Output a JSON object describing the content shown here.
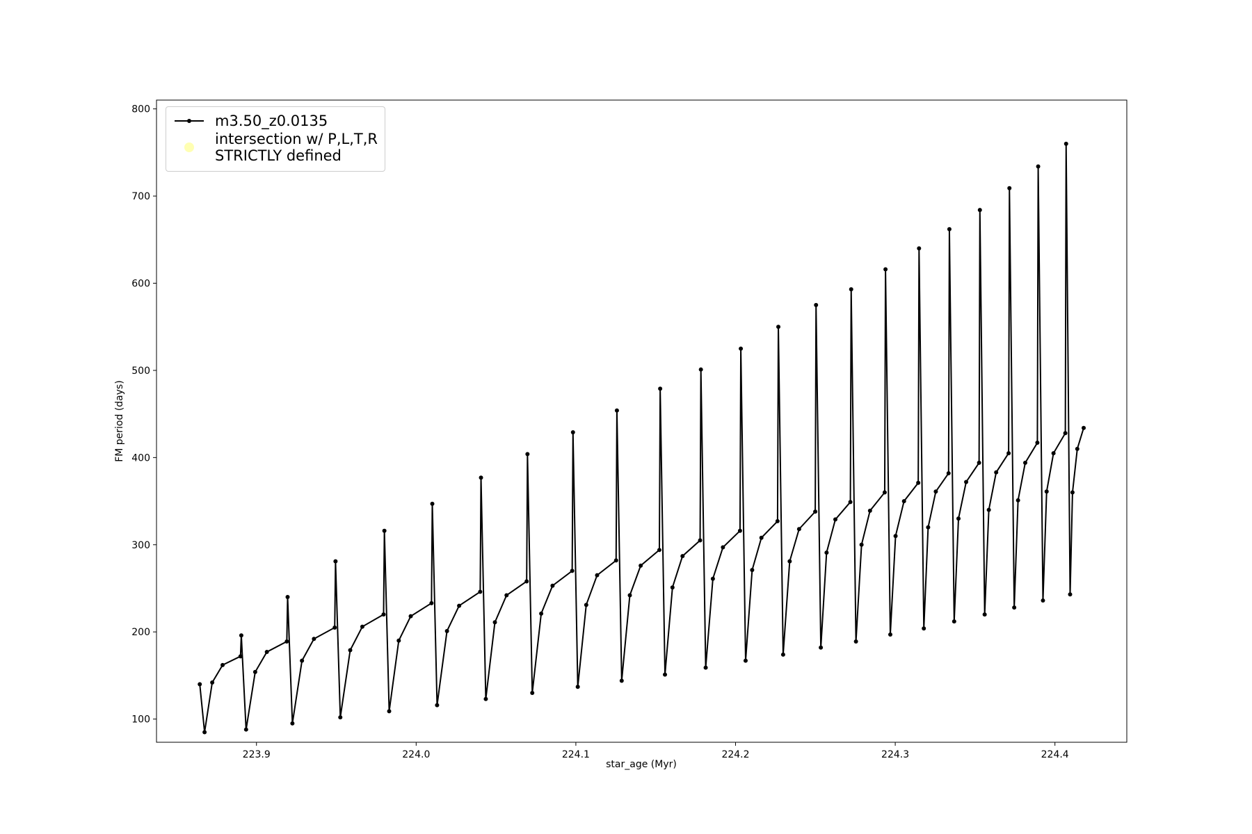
{
  "chart_data": {
    "type": "line",
    "xlabel": "star_age (Myr)",
    "ylabel": "FM period (days)",
    "xlim": [
      223.8374,
      224.445
    ],
    "ylim": [
      73.4,
      810.1
    ],
    "xticks": [
      223.9,
      {
        "value": 224.0,
        "label": "224.0"
      },
      224.1,
      224.2,
      224.3,
      224.4
    ],
    "yticks": [
      100,
      200,
      300,
      400,
      500,
      600,
      700,
      800
    ],
    "legend": "upper left",
    "x": [
      223.8645,
      223.8675,
      223.8723,
      223.8788,
      223.89,
      223.8905,
      223.8935,
      223.8992,
      223.9065,
      223.919,
      223.9195,
      223.9225,
      223.9285,
      223.936,
      223.949,
      223.9495,
      223.9525,
      223.9587,
      223.9663,
      223.9796,
      223.9801,
      223.9831,
      223.9891,
      223.9966,
      224.0096,
      224.0101,
      224.0131,
      224.0193,
      224.0269,
      224.0401,
      224.0406,
      224.0436,
      224.0493,
      224.0566,
      224.0692,
      224.0697,
      224.0727,
      224.0783,
      224.0854,
      224.0977,
      224.0982,
      224.1012,
      224.1065,
      224.1133,
      224.1252,
      224.1257,
      224.1287,
      224.1338,
      224.1406,
      224.1523,
      224.1528,
      224.1558,
      224.1605,
      224.1668,
      224.1778,
      224.1783,
      224.1813,
      224.1858,
      224.1921,
      224.2028,
      224.2033,
      224.2063,
      224.2104,
      224.2162,
      224.2263,
      224.2268,
      224.2298,
      224.2339,
      224.2398,
      224.2499,
      224.2504,
      224.2534,
      224.257,
      224.2625,
      224.2719,
      224.2724,
      224.2754,
      224.2789,
      224.2842,
      224.2934,
      224.2939,
      224.2969,
      224.3002,
      224.3055,
      224.3144,
      224.3149,
      224.3179,
      224.3206,
      224.3254,
      224.3334,
      224.3339,
      224.3369,
      224.3396,
      224.3444,
      224.3525,
      224.353,
      224.356,
      224.3586,
      224.3632,
      224.371,
      224.3715,
      224.3745,
      224.3769,
      224.3814,
      224.389,
      224.3895,
      224.3925,
      224.3948,
      224.3991,
      224.4065,
      224.407,
      224.4095,
      224.411,
      224.414,
      224.418
    ],
    "series": [
      {
        "name": "m3.50_z0.0135",
        "color": "#000000",
        "values": [
          140,
          85,
          142,
          162,
          172,
          196,
          88,
          154,
          177,
          189,
          240,
          95,
          167,
          192,
          205,
          281,
          102,
          179,
          206,
          220,
          316,
          109,
          190,
          218,
          233,
          347,
          116,
          201,
          230,
          246,
          377,
          123,
          211,
          242,
          258,
          404,
          130,
          221,
          253,
          270,
          429,
          137,
          231,
          265,
          282,
          454,
          144,
          242,
          276,
          294,
          479,
          151,
          251,
          287,
          305,
          501,
          159,
          261,
          297,
          316,
          525,
          167,
          271,
          308,
          327,
          550,
          174,
          281,
          318,
          338,
          575,
          182,
          291,
          329,
          349,
          593,
          189,
          300,
          339,
          360,
          616,
          197,
          310,
          350,
          371,
          640,
          204,
          320,
          361,
          382,
          662,
          212,
          330,
          372,
          394,
          684,
          220,
          340,
          383,
          405,
          709,
          228,
          351,
          394,
          417,
          734,
          236,
          361,
          405,
          428,
          760,
          243,
          360,
          410,
          434
        ]
      },
      {
        "name": "intersection w/ P,L,T,R\nSTRICTLY defined",
        "color": "#ffffb3"
      }
    ]
  }
}
